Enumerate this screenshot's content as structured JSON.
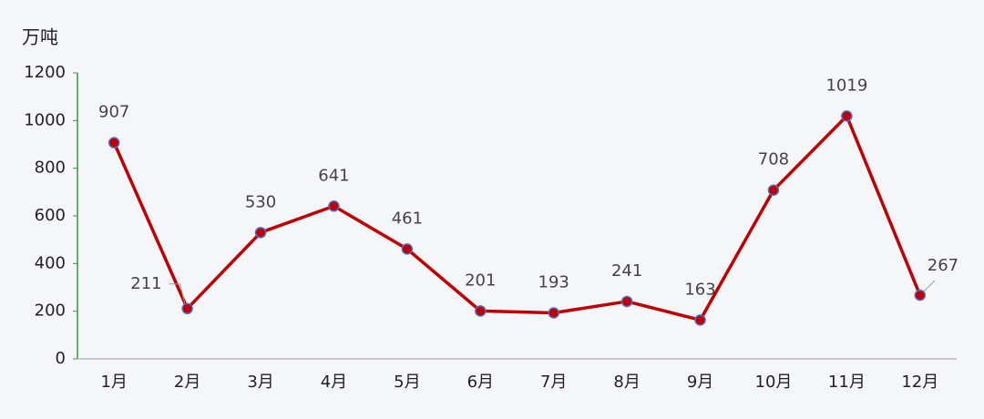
{
  "chart_data": {
    "type": "line",
    "y_label": "万吨",
    "categories": [
      "1月",
      "2月",
      "3月",
      "4月",
      "5月",
      "6月",
      "7月",
      "8月",
      "9月",
      "10月",
      "11月",
      "12月"
    ],
    "values": [
      907,
      211,
      530,
      641,
      461,
      201,
      193,
      241,
      163,
      708,
      1019,
      267
    ],
    "color": "#c00000",
    "marker_edge_color": "#4a6fd0",
    "ylim": [
      0,
      1200
    ],
    "yticks": [
      0,
      200,
      400,
      600,
      800,
      1000,
      1200
    ],
    "grid": false
  }
}
